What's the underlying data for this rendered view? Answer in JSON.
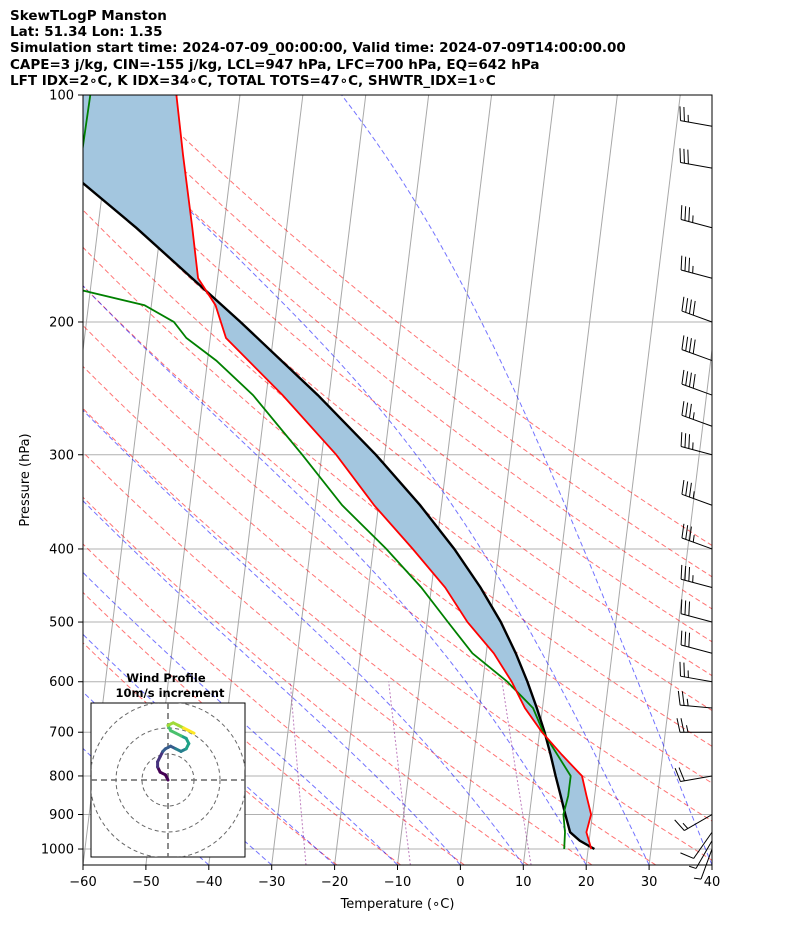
{
  "header": {
    "line1": "SkewTLogP Manston",
    "line2": "Lat: 51.34   Lon: 1.35",
    "line3": "Simulation start time: 2024-07-09_00:00:00, Valid time: 2024-07-09T14:00:00.00",
    "line4": "CAPE=3 j/kg, CIN=-155 j/kg, LCL=947 hPa, LFC=700 hPa, EQ=642 hPa",
    "line5": "LFT IDX=2∘C, K IDX=34∘C, TOTAL TOTS=47∘C, SHWTR_IDX=1∘C"
  },
  "chart_data": {
    "type": "skewt-logp",
    "xlabel": "Temperature (∘C)",
    "ylabel": "Pressure (hPa)",
    "xlim": [
      -60,
      40
    ],
    "ylim": [
      1050,
      100
    ],
    "x_ticks": [
      -60,
      -50,
      -40,
      -30,
      -20,
      -10,
      0,
      10,
      20,
      30,
      40
    ],
    "x_tick_labels": [
      "−60",
      "−50",
      "−40",
      "−30",
      "−20",
      "−10",
      "0",
      "10",
      "20",
      "30",
      "40"
    ],
    "y_ticks": [
      1000,
      900,
      800,
      700,
      600,
      500,
      400,
      300,
      200,
      100
    ],
    "y_tick_labels": [
      "1000",
      "900",
      "800",
      "700",
      "600",
      "500",
      "400",
      "300",
      "200",
      "100"
    ],
    "temperature": {
      "color": "#ff0000",
      "points": [
        [
          1000,
          20.5
        ],
        [
          950,
          19.4
        ],
        [
          900,
          19.8
        ],
        [
          850,
          18.7
        ],
        [
          800,
          17.6
        ],
        [
          750,
          14.0
        ],
        [
          700,
          10.4
        ],
        [
          650,
          7.2
        ],
        [
          600,
          4.6
        ],
        [
          550,
          1.2
        ],
        [
          500,
          -3.6
        ],
        [
          450,
          -7.8
        ],
        [
          400,
          -13.7
        ],
        [
          350,
          -20.7
        ],
        [
          300,
          -27.7
        ],
        [
          250,
          -37.4
        ],
        [
          210,
          -47.5
        ],
        [
          190,
          -49.8
        ],
        [
          175,
          -53.1
        ],
        [
          160,
          -54.2
        ],
        [
          150,
          -55.0
        ],
        [
          120,
          -57.9
        ],
        [
          100,
          -60.1
        ]
      ]
    },
    "dewpoint": {
      "color": "#008000",
      "points": [
        [
          1000,
          16.2
        ],
        [
          950,
          16.0
        ],
        [
          900,
          15.4
        ],
        [
          850,
          15.8
        ],
        [
          800,
          15.8
        ],
        [
          700,
          10.6
        ],
        [
          650,
          8.5
        ],
        [
          600,
          3.9
        ],
        [
          550,
          -2.2
        ],
        [
          500,
          -6.7
        ],
        [
          450,
          -11.6
        ],
        [
          400,
          -17.9
        ],
        [
          350,
          -25.8
        ],
        [
          300,
          -33.1
        ],
        [
          250,
          -42.1
        ],
        [
          225,
          -48.6
        ],
        [
          210,
          -53.8
        ],
        [
          200,
          -56.1
        ],
        [
          190,
          -61.1
        ],
        [
          180,
          -73.3
        ],
        [
          165,
          -72.1
        ],
        [
          140,
          -73.4
        ],
        [
          120,
          -74.0
        ],
        [
          100,
          -73.8
        ]
      ]
    },
    "parcel_profile": {
      "color": "#000000",
      "points": [
        [
          1000,
          21.0
        ],
        [
          975,
          18.5
        ],
        [
          950,
          16.8
        ],
        [
          900,
          15.7
        ],
        [
          850,
          14.6
        ],
        [
          800,
          13.4
        ],
        [
          750,
          12.2
        ],
        [
          700,
          10.8
        ],
        [
          650,
          9.1
        ],
        [
          600,
          7.1
        ],
        [
          550,
          4.7
        ],
        [
          500,
          1.7
        ],
        [
          450,
          -2.2
        ],
        [
          400,
          -7.1
        ],
        [
          350,
          -13.4
        ],
        [
          300,
          -21.4
        ],
        [
          250,
          -31.8
        ],
        [
          200,
          -45.5
        ],
        [
          150,
          -63.9
        ],
        [
          125,
          -76.4
        ],
        [
          100,
          -92.6
        ]
      ]
    },
    "cape_cin_fill_color": "#a3c6df",
    "dry_adiabats_K": [
      250,
      260,
      270,
      280,
      290,
      300,
      310,
      320,
      330,
      340,
      350,
      360,
      370,
      380,
      390,
      400
    ],
    "dry_adiabat_color": "#ff0000",
    "moist_adiabats_start_C": [
      -40,
      -30,
      -20,
      -10,
      0,
      10,
      20,
      30,
      40
    ],
    "moist_adiabat_color": "#0000ff",
    "isotherm_spacing_C": 10,
    "mixing_ratio_color": "#800080",
    "wind_barbs": [
      {
        "p": 1000,
        "speed_kt": 5,
        "dir_deg": 200
      },
      {
        "p": 975,
        "speed_kt": 5,
        "dir_deg": 210
      },
      {
        "p": 950,
        "speed_kt": 10,
        "dir_deg": 215
      },
      {
        "p": 900,
        "speed_kt": 15,
        "dir_deg": 240
      },
      {
        "p": 800,
        "speed_kt": 20,
        "dir_deg": 260
      },
      {
        "p": 700,
        "speed_kt": 25,
        "dir_deg": 270
      },
      {
        "p": 650,
        "speed_kt": 25,
        "dir_deg": 275
      },
      {
        "p": 600,
        "speed_kt": 25,
        "dir_deg": 280
      },
      {
        "p": 550,
        "speed_kt": 30,
        "dir_deg": 285
      },
      {
        "p": 500,
        "speed_kt": 30,
        "dir_deg": 285
      },
      {
        "p": 450,
        "speed_kt": 35,
        "dir_deg": 285
      },
      {
        "p": 400,
        "speed_kt": 35,
        "dir_deg": 290
      },
      {
        "p": 350,
        "speed_kt": 35,
        "dir_deg": 290
      },
      {
        "p": 300,
        "speed_kt": 35,
        "dir_deg": 285
      },
      {
        "p": 275,
        "speed_kt": 35,
        "dir_deg": 290
      },
      {
        "p": 250,
        "speed_kt": 40,
        "dir_deg": 290
      },
      {
        "p": 225,
        "speed_kt": 40,
        "dir_deg": 290
      },
      {
        "p": 200,
        "speed_kt": 40,
        "dir_deg": 290
      },
      {
        "p": 175,
        "speed_kt": 35,
        "dir_deg": 285
      },
      {
        "p": 150,
        "speed_kt": 35,
        "dir_deg": 285
      },
      {
        "p": 125,
        "speed_kt": 30,
        "dir_deg": 280
      },
      {
        "p": 110,
        "speed_kt": 25,
        "dir_deg": 280
      }
    ],
    "hodograph": {
      "title": "Wind Profile",
      "subtitle": "10m/s increment",
      "ring_radii_ms": [
        10,
        20,
        30
      ],
      "points": [
        [
          0,
          0
        ],
        [
          -1,
          2
        ],
        [
          -3,
          3
        ],
        [
          -4,
          5
        ],
        [
          -4,
          7
        ],
        [
          -3,
          9
        ],
        [
          -2,
          11
        ],
        [
          -1,
          12
        ],
        [
          1,
          13
        ],
        [
          3,
          12
        ],
        [
          5,
          11
        ],
        [
          7,
          12
        ],
        [
          8,
          14
        ],
        [
          7,
          16
        ],
        [
          5,
          17
        ],
        [
          3,
          18
        ],
        [
          1,
          19
        ],
        [
          0,
          21
        ],
        [
          2,
          22
        ],
        [
          4,
          21
        ],
        [
          6,
          20
        ],
        [
          8,
          19
        ],
        [
          10,
          18
        ]
      ]
    }
  }
}
